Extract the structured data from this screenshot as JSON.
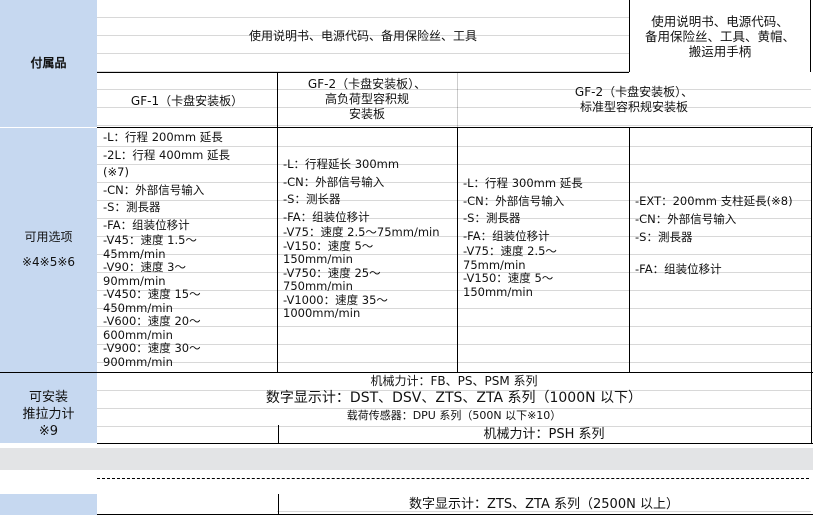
{
  "accessories": {
    "label": "付属品",
    "common": "使用说明书、电源代码、备用保险丝、工具",
    "col4": [
      "使用说明书、电源代码、",
      "备用保险丝、工具、黄帽、",
      "搬运用手柄"
    ]
  },
  "models": {
    "col1": "GF-1（卡盘安装板）",
    "col2": [
      "GF-2（卡盘安装板）、",
      "高负荷型容积规",
      "安装板"
    ],
    "col3": [
      "GF-2（卡盘安装板）、",
      "标准型容积规安装板"
    ]
  },
  "options": {
    "label": [
      "可用选项",
      "※4※5※6"
    ],
    "col1": [
      "-L：行程 200mm 延長",
      "-2L：行程 400mm 延長",
      "(※7)",
      "-CN：外部信号输入",
      "-S：測長器",
      "-FA：组装位移计",
      "-V45：速度 1.5～",
      "45mm/min",
      "-V90：速度 3～",
      "90mm/min",
      "-V450：速度 15～",
      "450mm/min",
      "-V600：速度 20～",
      "600mm/min",
      "-V900：速度 30～",
      "900mm/min"
    ],
    "col2": [
      "-L：行程延长 300mm",
      "-CN：外部信号输入",
      "-S：测长器",
      "-FA：组装位移计",
      "-V75：速度 2.5～75mm/min",
      "-V150：速度 5～",
      "150mm/min",
      "-V750：速度 25～",
      "750mm/min",
      "-V1000：速度 35～",
      "1000mm/min"
    ],
    "col3": [
      "-L：行程 300mm 延長",
      "-CN：外部信号输入",
      "-S：測長器",
      "-FA：组装位移计",
      "-V75：速度 2.5～",
      "75mm/min",
      "-V150：速度 5～",
      "150mm/min"
    ],
    "col4": [
      "-EXT：200mm 支柱延長(※8)",
      "-CN：外部信号输入",
      "-S：測長器",
      "",
      "-FA：组装位移计"
    ]
  },
  "gauges": {
    "label": [
      "可安装",
      "推拉力计",
      "※9"
    ],
    "rows": [
      "机械力计：FB、PS、PSM 系列",
      "数字显示计：DST、DSV、ZTS、ZTA 系列（1000N 以下）",
      "载荷传感器：DPU 系列（500N 以下※10）",
      "机械力计：PSH 系列"
    ],
    "bottom": "数字显示计：ZTS、ZTA 系列（2500N 以上）"
  },
  "colors": {
    "header_fill": "#c6d8f0",
    "band": "#e3e4e6"
  }
}
